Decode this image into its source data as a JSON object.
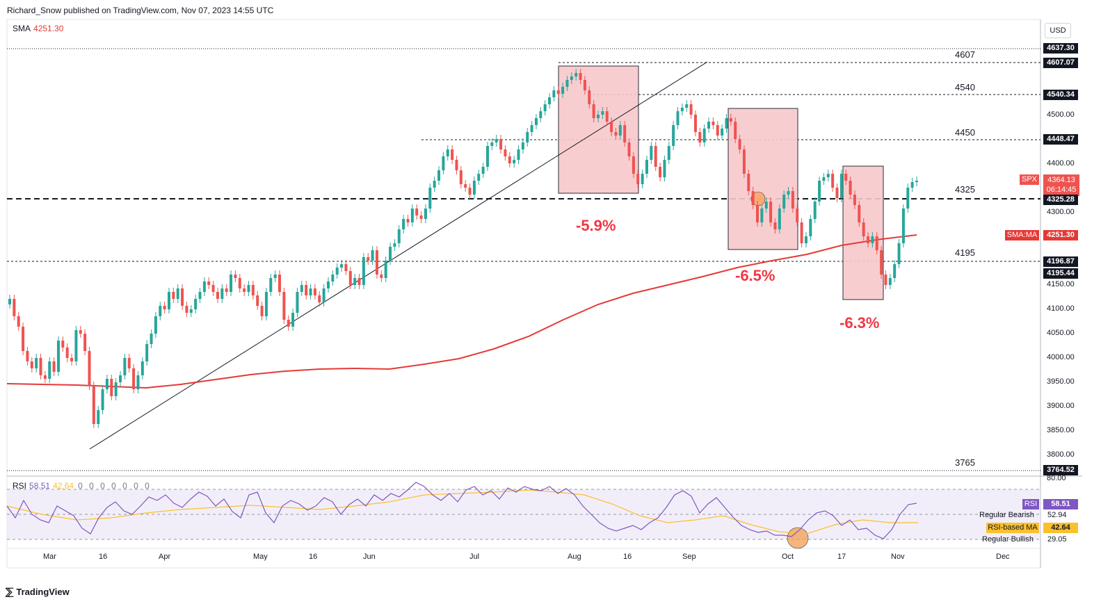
{
  "header": "Richard_Snow published on TradingView.com, Nov 07, 2023 14:55 UTC",
  "indicators": {
    "sma_name": "SMA",
    "sma_value": "4251.30",
    "rsi_name": "RSI",
    "rsi_value": "58.51",
    "rsi_ma_value": "42.64",
    "rsi_extra": "0 0 0 0 0 0 0"
  },
  "currency": "USD",
  "price_axis_ticks": [
    "4500.00",
    "4400.00",
    "4300.00",
    "4150.00",
    "4100.00",
    "4050.00",
    "4000.00",
    "3950.00",
    "3900.00",
    "3850.00",
    "3800.00"
  ],
  "price_tags": {
    "p4637": "4637.30",
    "p4607": "4607.07",
    "p4540": "4540.34",
    "p4448": "4448.47",
    "spx_symbol": "SPX",
    "spx_price": "4364.13",
    "countdown": "06:14:45",
    "p4325": "4325.28",
    "sma_tag": "SMA:MA",
    "sma_value": "4251.30",
    "p4196": "4196.87",
    "p4195": "4195.44",
    "p3764": "3764.52"
  },
  "level_labels": [
    "4607",
    "4540",
    "4450",
    "4325",
    "4195",
    "3765"
  ],
  "percent_labels": [
    "-5.9%",
    "-6.5%",
    "-6.3%"
  ],
  "rsi_axis": {
    "top": "80.00",
    "rsi_tag": "RSI",
    "rsi_value": "58.51",
    "bearish_label": "Regular Bearish",
    "bearish_value": "52.94",
    "ma_tag": "RSI-based MA",
    "ma_value": "42.64",
    "bullish_label": "Regular Bullish",
    "bullish_value": "29.05"
  },
  "time_axis": [
    "Mar",
    "16",
    "Apr",
    "May",
    "16",
    "Jun",
    "Jul",
    "Aug",
    "16",
    "Sep",
    "Oct",
    "17",
    "Nov",
    "Dec"
  ],
  "footer": "TradingView",
  "colors": {
    "up": "#26a69a",
    "down": "#ef5350",
    "sma": "#e53935",
    "rsi": "#7e57c2",
    "rsi_ma": "#fbc02d",
    "box": "#f8c8cc"
  }
}
